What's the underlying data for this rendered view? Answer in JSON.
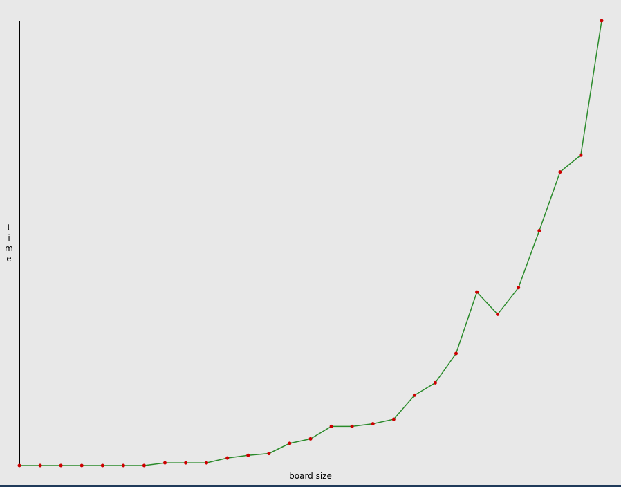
{
  "chart_data": {
    "type": "line",
    "title": "",
    "xlabel": "board size",
    "ylabel": "time",
    "x": [
      1,
      2,
      3,
      4,
      5,
      6,
      7,
      8,
      9,
      10,
      11,
      12,
      13,
      14,
      15,
      16,
      17,
      18,
      19,
      20,
      21,
      22,
      23,
      24,
      25,
      26,
      27,
      28,
      29
    ],
    "series": [
      {
        "values": [
          0,
          0,
          0,
          0,
          0,
          0,
          0,
          0.6,
          0.6,
          0.6,
          1.7,
          2.3,
          2.7,
          5.0,
          6.0,
          8.8,
          8.8,
          9.4,
          10.4,
          15.8,
          18.6,
          25.2,
          39.0,
          34.0,
          40.0,
          52.8,
          66.0,
          69.8,
          100
        ]
      }
    ],
    "ylim": [
      0,
      100
    ],
    "grid": false,
    "line_color": "#2a8a2a",
    "marker_color": "#cc0000"
  }
}
